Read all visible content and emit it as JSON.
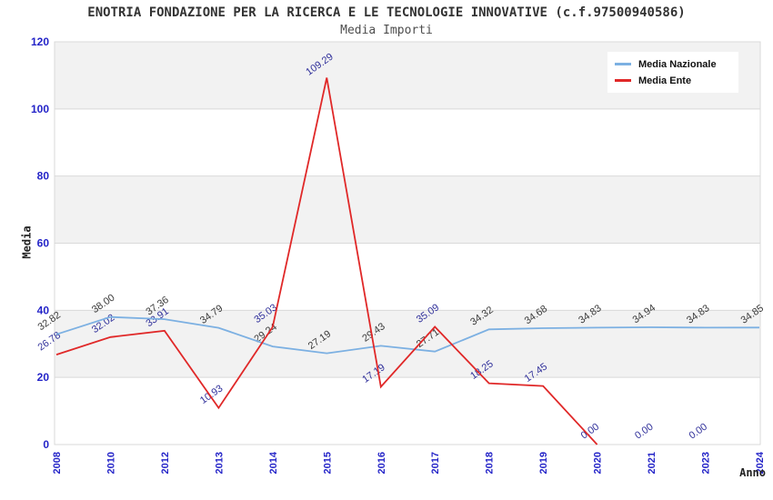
{
  "title": "ENOTRIA FONDAZIONE PER LA RICERCA E LE TECNOLOGIE INNOVATIVE (c.f.97500940586)",
  "subtitle": "Media Importi",
  "legend": {
    "items": [
      {
        "label": "Media Nazionale",
        "color": "#7cb0e2"
      },
      {
        "label": "Media Ente",
        "color": "#e02828"
      }
    ]
  },
  "chart_data": {
    "type": "line",
    "title": "ENOTRIA FONDAZIONE PER LA RICERCA E LE TECNOLOGIE INNOVATIVE (c.f.97500940586)",
    "subtitle": "Media Importi",
    "xlabel": "Anno",
    "ylabel": "Media",
    "categories": [
      "2008",
      "2010",
      "2012",
      "2013",
      "2014",
      "2015",
      "2016",
      "2017",
      "2018",
      "2019",
      "2020",
      "2021",
      "2023",
      "2024"
    ],
    "series": [
      {
        "name": "Media Nazionale",
        "color": "#7cb0e2",
        "label_color": "#3a3a3a",
        "values": [
          32.82,
          38.0,
          37.36,
          34.79,
          29.24,
          27.19,
          29.43,
          27.71,
          34.32,
          34.68,
          34.83,
          34.94,
          34.83,
          34.85
        ]
      },
      {
        "name": "Media Ente",
        "color": "#e02828",
        "label_color": "#31319b",
        "values": [
          26.78,
          32.02,
          33.91,
          10.93,
          35.03,
          109.29,
          17.19,
          35.09,
          18.25,
          17.45,
          0.0,
          0.0,
          0.0,
          null
        ],
        "line_end_index": 10
      }
    ],
    "ylim": [
      0,
      120
    ],
    "y_ticks": [
      0,
      20,
      40,
      60,
      80,
      100,
      120
    ],
    "grid": "horizontal-bands",
    "band_colors": [
      "#ffffff",
      "#f2f2f2"
    ],
    "grid_color": "#d9d9d9",
    "tick_label_color": "#2424c8",
    "legend_position": "top-right"
  }
}
